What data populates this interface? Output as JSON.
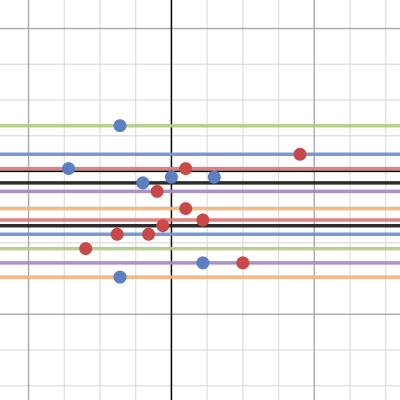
{
  "chart_data": {
    "type": "scatter",
    "xlim": [
      -6,
      8
    ],
    "ylim": [
      -8,
      6
    ],
    "grid": true,
    "minor_grid_step": 1.25,
    "major_grid_step": 5,
    "colors": {
      "green": "#b4cc8c",
      "blue": "#7095cf",
      "red": "#dd7a7a",
      "black": "#222222",
      "purple": "#a68bc6",
      "orange": "#f4b57a",
      "point_blue": "#5b7fc1",
      "point_red": "#c9484a",
      "grid_minor": "#dddddd",
      "grid_major": "#a9a9a9",
      "axis": "#000000"
    },
    "horizontal_lines": [
      {
        "y": 1.6,
        "color": "green"
      },
      {
        "y": 0.6,
        "color": "blue"
      },
      {
        "y": 0.1,
        "color": "red"
      },
      {
        "y": -0.4,
        "color": "black"
      },
      {
        "y": -0.7,
        "color": "purple"
      },
      {
        "y": -1.3,
        "color": "orange"
      },
      {
        "y": -1.7,
        "color": "red"
      },
      {
        "y": -1.9,
        "color": "black"
      },
      {
        "y": -2.2,
        "color": "blue"
      },
      {
        "y": -2.7,
        "color": "green"
      },
      {
        "y": -3.2,
        "color": "purple"
      },
      {
        "y": -3.7,
        "color": "orange"
      }
    ],
    "series": [
      {
        "color": "point_blue",
        "points": [
          [
            -1.8,
            1.6
          ],
          [
            -3.6,
            0.1
          ],
          [
            -1.0,
            -0.4
          ],
          [
            0.0,
            -0.2
          ],
          [
            1.5,
            -0.2
          ],
          [
            1.1,
            -3.2
          ],
          [
            -1.8,
            -3.7
          ]
        ]
      },
      {
        "color": "point_red",
        "points": [
          [
            4.5,
            0.6
          ],
          [
            0.5,
            0.1
          ],
          [
            -0.5,
            -0.7
          ],
          [
            0.5,
            -1.3
          ],
          [
            1.1,
            -1.7
          ],
          [
            -0.3,
            -1.9
          ],
          [
            -0.8,
            -2.2
          ],
          [
            -1.9,
            -2.2
          ],
          [
            -3.0,
            -2.7
          ],
          [
            2.5,
            -3.2
          ]
        ]
      }
    ]
  }
}
